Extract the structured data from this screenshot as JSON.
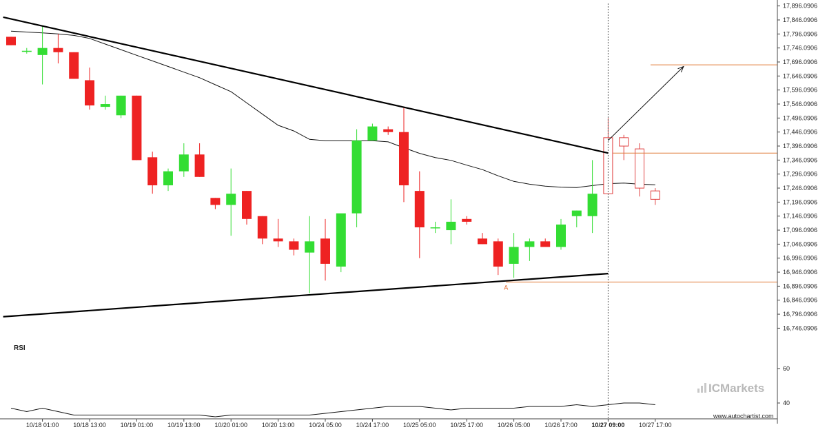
{
  "chart_data": {
    "type": "candlestick",
    "y_ticks": [
      "17,896.0906",
      "17,846.0906",
      "17,796.0906",
      "17,746.0906",
      "17,696.0906",
      "17,646.0906",
      "17,596.0906",
      "17,546.0906",
      "17,496.0906",
      "17,446.0906",
      "17,396.0906",
      "17,346.0906",
      "17,296.0906",
      "17,246.0906",
      "17,196.0906",
      "17,146.0906",
      "17,096.0906",
      "17,046.0906",
      "16,996.0906",
      "16,946.0906",
      "16,896.0906",
      "16,846.0906",
      "16,796.0906",
      "16,746.0906"
    ],
    "ylim": [
      16725,
      17905
    ],
    "x_ticks": [
      {
        "label": "10/18 01:00",
        "index": 2,
        "bold": false
      },
      {
        "label": "10/18 13:00",
        "index": 5,
        "bold": false
      },
      {
        "label": "10/19 01:00",
        "index": 8,
        "bold": false
      },
      {
        "label": "10/19 13:00",
        "index": 11,
        "bold": false
      },
      {
        "label": "10/20 01:00",
        "index": 14,
        "bold": false
      },
      {
        "label": "10/20 13:00",
        "index": 17,
        "bold": false
      },
      {
        "label": "10/24 05:00",
        "index": 20,
        "bold": false
      },
      {
        "label": "10/24 17:00",
        "index": 23,
        "bold": false
      },
      {
        "label": "10/25 05:00",
        "index": 26,
        "bold": false
      },
      {
        "label": "10/25 17:00",
        "index": 29,
        "bold": false
      },
      {
        "label": "10/26 05:00",
        "index": 32,
        "bold": false
      },
      {
        "label": "10/26 17:00",
        "index": 35,
        "bold": false
      },
      {
        "label": "10/27 09:00",
        "index": 38,
        "bold": true
      },
      {
        "label": "10/27 17:00",
        "index": 41,
        "bold": false
      }
    ],
    "candles": [
      [
        17786,
        17786,
        17756,
        17756
      ],
      [
        17736,
        17746,
        17726,
        17736
      ],
      [
        17721,
        17826,
        17616,
        17746
      ],
      [
        17746,
        17796,
        17691,
        17731
      ],
      [
        17731,
        17731,
        17636,
        17636
      ],
      [
        17631,
        17676,
        17526,
        17541
      ],
      [
        17536,
        17576,
        17526,
        17546
      ],
      [
        17506,
        17576,
        17496,
        17576
      ],
      [
        17576,
        17576,
        17346,
        17346
      ],
      [
        17356,
        17376,
        17226,
        17256
      ],
      [
        17256,
        17316,
        17236,
        17306
      ],
      [
        17306,
        17406,
        17286,
        17366
      ],
      [
        17366,
        17406,
        17286,
        17286
      ],
      [
        17211,
        17211,
        17171,
        17186
      ],
      [
        17186,
        17316,
        17076,
        17226
      ],
      [
        17236,
        17236,
        17116,
        17136
      ],
      [
        17146,
        17146,
        17046,
        17066
      ],
      [
        17066,
        17136,
        17036,
        17056
      ],
      [
        17056,
        17066,
        17006,
        17026
      ],
      [
        17016,
        17146,
        16871,
        17056
      ],
      [
        17066,
        17136,
        16916,
        16976
      ],
      [
        16966,
        17146,
        16946,
        17156
      ],
      [
        17156,
        17456,
        17106,
        17416
      ],
      [
        17416,
        17476,
        17416,
        17466
      ],
      [
        17456,
        17466,
        17436,
        17446
      ],
      [
        17446,
        17536,
        17196,
        17256
      ],
      [
        17236,
        17306,
        16996,
        17106
      ],
      [
        17106,
        17126,
        17086,
        17106
      ],
      [
        17096,
        17206,
        17046,
        17126
      ],
      [
        17136,
        17146,
        17116,
        17126
      ],
      [
        17066,
        17086,
        17046,
        17046
      ],
      [
        17056,
        17066,
        16936,
        16966
      ],
      [
        16976,
        17086,
        16926,
        17036
      ],
      [
        17036,
        17066,
        16986,
        17056
      ],
      [
        17056,
        17066,
        17036,
        17036
      ],
      [
        17036,
        17136,
        17026,
        17116
      ],
      [
        17146,
        17166,
        17106,
        17166
      ],
      [
        17146,
        17346,
        17086,
        17226
      ],
      [
        17226,
        17496,
        17226,
        17426
      ],
      [
        17426,
        17436,
        17346,
        17396
      ],
      [
        17386,
        17406,
        17216,
        17246
      ],
      [
        17236,
        17246,
        17186,
        17206
      ]
    ],
    "moving_average": [
      17806,
      17803,
      17800,
      17796,
      17791,
      17780,
      17760,
      17740,
      17720,
      17700,
      17680,
      17660,
      17640,
      17615,
      17590,
      17550,
      17510,
      17470,
      17450,
      17420,
      17415,
      17415,
      17415,
      17415,
      17411,
      17390,
      17370,
      17355,
      17345,
      17328,
      17312,
      17290,
      17270,
      17260,
      17253,
      17249,
      17248,
      17255,
      17262,
      17264,
      17260,
      17258
    ],
    "resistance_line": {
      "from": [
        -0.5,
        17856
      ],
      "to": [
        38,
        17371
      ]
    },
    "support_line": {
      "from": [
        -0.5,
        16787
      ],
      "to": [
        38,
        16941
      ]
    },
    "forecast_arrow": {
      "from": [
        38,
        17416
      ],
      "to": [
        42.8,
        17680
      ]
    },
    "horizontal_levels": [
      {
        "value": 17686,
        "from_index": 40.7
      },
      {
        "value": 17371,
        "from_index": 38.3
      },
      {
        "value": 16911,
        "from_index": 31.5
      }
    ],
    "current_time_index": 38,
    "point_label": "A",
    "point_label_index": 31.5,
    "rsi": {
      "label": "RSI",
      "y_ticks": [
        60,
        40
      ],
      "ylim": [
        30,
        70
      ],
      "values": [
        37,
        35,
        37,
        35,
        33,
        33,
        33,
        33,
        33,
        33,
        33,
        33,
        33,
        32,
        33,
        33,
        33,
        33,
        33,
        33,
        34,
        35,
        36,
        37,
        38,
        38,
        38,
        37,
        36,
        37,
        37,
        37,
        37,
        38,
        38,
        38,
        39,
        38,
        39,
        40,
        40,
        39
      ]
    },
    "colors": {
      "up": "#33dd33",
      "down": "#ee2222",
      "empty_candle": "#e04040",
      "line": "#000000",
      "level": "#e07b39",
      "grid": "#ffffff"
    }
  },
  "branding": {
    "name": "ICMarkets",
    "url": "www.autochartist.com"
  }
}
